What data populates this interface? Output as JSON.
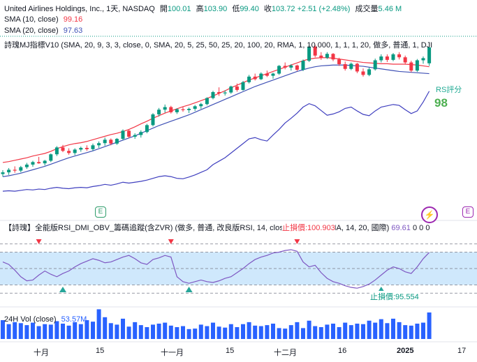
{
  "header": {
    "symbol": "United Airlines Holdings, Inc., 1天, NASDAQ",
    "open_label": "開",
    "open": "100.01",
    "high_label": "高",
    "high": "103.90",
    "low_label": "低",
    "low": "99.40",
    "close_label": "收",
    "close": "103.72",
    "change": "+2.51 (+2.48%)",
    "volume_label": "成交量",
    "volume": "5.46 M"
  },
  "sma10": {
    "label": "SMA (10, close)",
    "value": "99.16",
    "color": "#f23645"
  },
  "sma20": {
    "label": "SMA (20, close)",
    "value": "97.63",
    "color": "#3f51b5"
  },
  "indicator_line": "詩瑰MJ指標V10 (SMA, 20, 9, 3, 3, close, 0, SMA, 20, 5, 25, 50, 25, 20, 100, 20, RMA, 1, 10,000, 1, 1, 1, 20, 做多, 普通, 1, DJI",
  "rs": {
    "label": "RS評分",
    "value": "98"
  },
  "oscillator": {
    "title": "【詩瑰】全能版RSI_DMI_OBV_籌碼追蹤(含ZVR) (做多, 普通, 改良版RSI, 14, close, 國際, 14, RMA, 14, 20, 國際)",
    "value": "69.61",
    "extra": "0  0  0",
    "stop_top": "止損價:100.903",
    "stop_bottom": "止損價:95.554"
  },
  "volume_pane": {
    "label": "24H Vol (close)",
    "value": "53.57M"
  },
  "x_axis": [
    "十月",
    "15",
    "十一月",
    "15",
    "十二月",
    "16",
    "2025",
    "17"
  ],
  "badges": [
    "E",
    "E"
  ],
  "chart_data": {
    "type": "candlestick",
    "candles": [
      [
        74.2,
        75.1,
        73.6,
        74.6
      ],
      [
        74.6,
        75.6,
        74.0,
        75.2
      ],
      [
        75.2,
        76.0,
        74.5,
        75.0
      ],
      [
        75.0,
        76.1,
        74.6,
        75.8
      ],
      [
        75.8,
        76.8,
        75.4,
        76.4
      ],
      [
        76.4,
        77.3,
        75.9,
        77.0
      ],
      [
        77.0,
        78.2,
        76.6,
        76.7
      ],
      [
        76.7,
        77.5,
        76.2,
        77.3
      ],
      [
        77.3,
        79.0,
        77.0,
        78.8
      ],
      [
        78.8,
        80.7,
        78.4,
        80.4
      ],
      [
        80.4,
        81.0,
        79.3,
        79.6
      ],
      [
        79.6,
        80.2,
        78.7,
        79.1
      ],
      [
        79.1,
        80.2,
        78.6,
        79.9
      ],
      [
        79.9,
        80.6,
        79.4,
        80.3
      ],
      [
        80.3,
        80.9,
        79.6,
        80.0
      ],
      [
        80.0,
        81.3,
        79.6,
        80.9
      ],
      [
        80.9,
        81.8,
        80.3,
        81.4
      ],
      [
        81.4,
        82.7,
        80.8,
        82.2
      ],
      [
        82.2,
        82.5,
        80.9,
        81.3
      ],
      [
        81.3,
        82.6,
        81.0,
        82.4
      ],
      [
        82.4,
        84.6,
        82.1,
        84.3
      ],
      [
        84.3,
        84.6,
        82.6,
        82.9
      ],
      [
        82.9,
        83.7,
        82.4,
        83.3
      ],
      [
        83.3,
        84.4,
        82.7,
        84.0
      ],
      [
        84.0,
        85.9,
        83.7,
        85.6
      ],
      [
        85.6,
        88.4,
        85.3,
        88.1
      ],
      [
        88.1,
        89.6,
        87.6,
        89.2
      ],
      [
        89.2,
        90.4,
        88.5,
        89.8
      ],
      [
        89.8,
        90.1,
        88.3,
        88.6
      ],
      [
        88.6,
        89.5,
        88.2,
        89.3
      ],
      [
        89.3,
        89.8,
        88.7,
        89.1
      ],
      [
        89.1,
        89.7,
        88.4,
        89.4
      ],
      [
        89.4,
        90.3,
        88.9,
        90.0
      ],
      [
        90.0,
        90.8,
        89.4,
        90.5
      ],
      [
        90.5,
        92.1,
        90.2,
        91.9
      ],
      [
        91.9,
        93.6,
        91.6,
        93.3
      ],
      [
        93.3,
        94.4,
        92.4,
        93.0
      ],
      [
        93.0,
        93.7,
        92.5,
        93.2
      ],
      [
        93.2,
        94.8,
        92.9,
        94.6
      ],
      [
        94.6,
        95.3,
        93.4,
        93.8
      ],
      [
        93.8,
        95.9,
        93.6,
        95.6
      ],
      [
        95.6,
        97.3,
        95.3,
        96.9
      ],
      [
        96.9,
        97.6,
        96.0,
        96.3
      ],
      [
        96.3,
        97.9,
        96.1,
        97.6
      ],
      [
        97.6,
        98.3,
        96.8,
        97.1
      ],
      [
        97.1,
        97.8,
        96.4,
        97.6
      ],
      [
        97.6,
        99.6,
        97.3,
        99.4
      ],
      [
        99.4,
        100.2,
        98.6,
        99.0
      ],
      [
        99.0,
        99.8,
        98.3,
        99.5
      ],
      [
        99.5,
        99.7,
        98.2,
        98.5
      ],
      [
        98.5,
        100.9,
        98.2,
        100.6
      ],
      [
        100.6,
        104.2,
        100.3,
        103.9
      ],
      [
        103.9,
        104.3,
        101.4,
        101.8
      ],
      [
        101.8,
        102.6,
        100.8,
        101.3
      ],
      [
        101.3,
        102.6,
        101.0,
        102.2
      ],
      [
        102.2,
        102.4,
        100.5,
        100.9
      ],
      [
        100.9,
        101.3,
        99.4,
        99.8
      ],
      [
        99.8,
        100.4,
        98.3,
        98.7
      ],
      [
        98.7,
        100.2,
        98.4,
        99.9
      ],
      [
        99.9,
        100.1,
        97.7,
        98.1
      ],
      [
        98.1,
        98.8,
        96.9,
        97.3
      ],
      [
        97.3,
        99.0,
        97.0,
        98.6
      ],
      [
        98.6,
        101.1,
        98.3,
        100.7
      ],
      [
        100.7,
        102.1,
        100.2,
        101.6
      ],
      [
        101.6,
        102.1,
        100.3,
        100.8
      ],
      [
        100.8,
        102.4,
        100.5,
        102.1
      ],
      [
        102.1,
        102.6,
        100.9,
        101.4
      ],
      [
        101.4,
        101.8,
        99.7,
        100.2
      ],
      [
        100.2,
        100.6,
        97.9,
        98.3
      ],
      [
        98.3,
        101.0,
        98.0,
        100.7
      ],
      [
        100.7,
        101.6,
        99.9,
        101.2
      ],
      [
        100.0,
        103.9,
        99.4,
        103.7
      ]
    ],
    "sma10": [
      76.9,
      77.1,
      77.4,
      77.7,
      78.0,
      78.4,
      78.7,
      79.0,
      79.5,
      80.1,
      80.6,
      81.0,
      81.3,
      81.5,
      81.8,
      82.2,
      82.6,
      83.0,
      83.4,
      83.7,
      84.1,
      84.6,
      85.2,
      85.9,
      86.5,
      87.2,
      87.8,
      88.4,
      88.9,
      89.4,
      89.9,
      90.3,
      90.8,
      91.3,
      91.8,
      92.4,
      93.0,
      93.6,
      94.3,
      94.9,
      95.5,
      96.1,
      96.6,
      97.1,
      97.6,
      98.1,
      98.6,
      99.1,
      99.6,
      100.1,
      100.6,
      101.0,
      101.2,
      101.3,
      101.3,
      101.2,
      101.0,
      100.8,
      100.6,
      100.4,
      100.2,
      100.1,
      100.0,
      99.9,
      99.9,
      99.8,
      99.8,
      99.8,
      99.7,
      99.6,
      99.4,
      99.2
    ],
    "sma20": [
      73.6,
      73.8,
      74.1,
      74.4,
      74.8,
      75.2,
      75.6,
      76.0,
      76.5,
      77.0,
      77.5,
      78.0,
      78.4,
      78.8,
      79.2,
      79.6,
      80.1,
      80.6,
      81.1,
      81.6,
      82.1,
      82.6,
      83.1,
      83.7,
      84.3,
      84.9,
      85.5,
      86.0,
      86.5,
      87.0,
      87.5,
      88.0,
      88.6,
      89.2,
      89.8,
      90.4,
      91.0,
      91.6,
      92.2,
      92.8,
      93.4,
      94.0,
      94.6,
      95.1,
      95.6,
      96.1,
      96.6,
      97.1,
      97.6,
      98.1,
      98.5,
      98.9,
      99.2,
      99.4,
      99.5,
      99.6,
      99.6,
      99.6,
      99.5,
      99.4,
      99.3,
      99.1,
      98.9,
      98.7,
      98.5,
      98.3,
      98.1,
      98.0,
      97.9,
      97.8,
      97.7,
      97.6
    ],
    "rs_line": [
      70.2,
      70.3,
      70.2,
      70.4,
      70.6,
      70.5,
      70.7,
      70.6,
      70.9,
      71.1,
      70.9,
      70.8,
      71.0,
      71.1,
      71.0,
      71.3,
      71.5,
      71.8,
      71.6,
      71.9,
      72.3,
      72.1,
      72.3,
      72.5,
      72.8,
      73.2,
      73.6,
      73.8,
      73.6,
      73.2,
      73.1,
      73.5,
      74.0,
      74.6,
      75.2,
      76.4,
      77.2,
      78.0,
      79.1,
      80.2,
      81.3,
      82.4,
      82.7,
      82.2,
      81.9,
      83.3,
      84.6,
      86.1,
      87.2,
      88.4,
      89.8,
      90.6,
      90.1,
      89.0,
      87.9,
      88.2,
      88.7,
      89.5,
      89.8,
      88.9,
      88.1,
      87.8,
      88.9,
      89.8,
      90.1,
      90.4,
      90.2,
      89.2,
      88.3,
      88.9,
      91.0,
      93.5
    ],
    "rsi": [
      58,
      55,
      48,
      40,
      35,
      36,
      42,
      47,
      43,
      40,
      44,
      47,
      52,
      56,
      59,
      62,
      60,
      57,
      58,
      61,
      64,
      66,
      62,
      57,
      55,
      61,
      63,
      66,
      64,
      40,
      34,
      32,
      34,
      36,
      34,
      33,
      35,
      38,
      40,
      45,
      50,
      56,
      61,
      64,
      66,
      69,
      70,
      72,
      73,
      71,
      58,
      52,
      54,
      45,
      38,
      34,
      32,
      29,
      27,
      26,
      28,
      31,
      36,
      42,
      48,
      52,
      50,
      46,
      44,
      52,
      62,
      69.61
    ],
    "volume": [
      38,
      30,
      34,
      32,
      28,
      33,
      26,
      30,
      29,
      36,
      31,
      27,
      34,
      30,
      38,
      35,
      60,
      44,
      32,
      29,
      41,
      25,
      34,
      28,
      24,
      29,
      31,
      33,
      27,
      24,
      26,
      20,
      21,
      29,
      26,
      33,
      25,
      23,
      30,
      24,
      30,
      34,
      27,
      26,
      28,
      31,
      22,
      21,
      28,
      34,
      22,
      37,
      26,
      24,
      29,
      31,
      24,
      33,
      28,
      31,
      30,
      37,
      33,
      40,
      32,
      41,
      34,
      28,
      27,
      31,
      33,
      53.57
    ]
  }
}
